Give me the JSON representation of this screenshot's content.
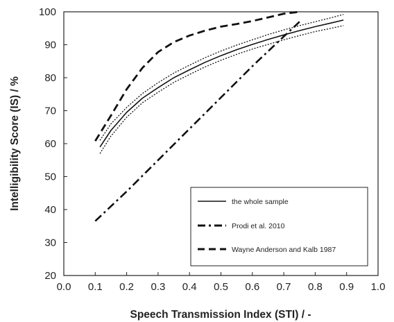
{
  "chart_data": {
    "type": "line",
    "xlabel": "Speech Transmission Index (STI)  / -",
    "ylabel": "Intelligibility Score  (IS) / %",
    "xlim": [
      0.0,
      1.0
    ],
    "ylim": [
      20,
      100
    ],
    "x_ticks": [
      "0.0",
      "0.1",
      "0.2",
      "0.3",
      "0.4",
      "0.5",
      "0.6",
      "0.7",
      "0.8",
      "0.9",
      "1.0"
    ],
    "y_ticks": [
      "20",
      "30",
      "40",
      "50",
      "60",
      "70",
      "80",
      "90",
      "100"
    ],
    "grid": false,
    "legend_position": "bottom-right",
    "series": [
      {
        "name": "the whole sample",
        "style": "solid",
        "x": [
          0.115,
          0.15,
          0.2,
          0.25,
          0.3,
          0.35,
          0.4,
          0.45,
          0.5,
          0.55,
          0.6,
          0.65,
          0.7,
          0.75,
          0.8,
          0.85,
          0.89
        ],
        "y": [
          59.0,
          64.0,
          69.5,
          73.8,
          77.0,
          80.0,
          82.4,
          84.7,
          86.7,
          88.5,
          90.1,
          91.6,
          93.0,
          94.3,
          95.5,
          96.6,
          97.5
        ]
      },
      {
        "name": "",
        "style": "dotted",
        "x": [
          0.115,
          0.15,
          0.2,
          0.25,
          0.3,
          0.35,
          0.4,
          0.45,
          0.5,
          0.55,
          0.6,
          0.65,
          0.7,
          0.75,
          0.8,
          0.85,
          0.89
        ],
        "y": [
          61.0,
          66.0,
          71.0,
          75.2,
          78.5,
          81.4,
          83.8,
          86.1,
          88.1,
          89.9,
          91.5,
          93.1,
          94.5,
          95.8,
          97.0,
          98.2,
          99.2
        ]
      },
      {
        "name": "",
        "style": "dotted",
        "x": [
          0.115,
          0.15,
          0.2,
          0.25,
          0.3,
          0.35,
          0.4,
          0.45,
          0.5,
          0.55,
          0.6,
          0.65,
          0.7,
          0.75,
          0.8,
          0.85,
          0.89
        ],
        "y": [
          57.0,
          62.3,
          68.0,
          72.4,
          75.6,
          78.6,
          81.0,
          83.3,
          85.3,
          87.1,
          88.7,
          90.1,
          91.5,
          92.8,
          94.0,
          95.0,
          95.8
        ]
      },
      {
        "name": "Prodi et al. 2010",
        "style": "dashdot",
        "x": [
          0.1,
          0.2,
          0.3,
          0.4,
          0.5,
          0.6,
          0.7,
          0.75
        ],
        "y": [
          36.5,
          45.5,
          55.0,
          64.5,
          74.0,
          83.5,
          92.5,
          97.0
        ]
      },
      {
        "name": "Wayne Anderson and Kalb 1987",
        "style": "dashed",
        "x": [
          0.1,
          0.15,
          0.2,
          0.25,
          0.3,
          0.35,
          0.4,
          0.45,
          0.5,
          0.55,
          0.6,
          0.65,
          0.7,
          0.75
        ],
        "y": [
          60.8,
          68.5,
          76.5,
          83.0,
          87.8,
          90.8,
          92.8,
          94.3,
          95.5,
          96.3,
          97.2,
          98.3,
          99.4,
          100.0
        ]
      }
    ]
  }
}
